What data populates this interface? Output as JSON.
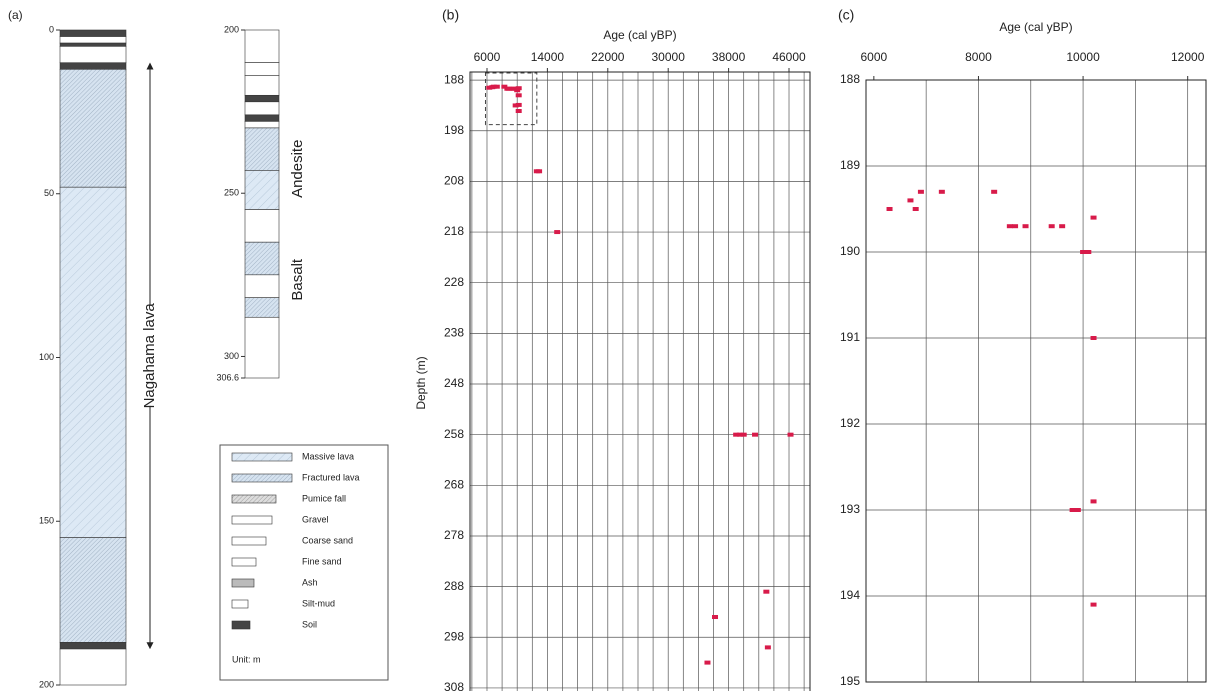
{
  "column_a": {
    "panel": "(a)",
    "columns": [
      {
        "lim": [
          0,
          200
        ],
        "ticks": [
          0,
          50,
          100,
          150,
          200
        ],
        "layers": [
          {
            "top": 0,
            "bottom": 2,
            "kind": 8
          },
          {
            "top": 2,
            "bottom": 4,
            "kind": 3
          },
          {
            "top": 4,
            "bottom": 5,
            "kind": 8
          },
          {
            "top": 5,
            "bottom": 10,
            "kind": 3
          },
          {
            "top": 10,
            "bottom": 12,
            "kind": 8
          },
          {
            "top": 12,
            "bottom": 48,
            "kind": 1
          },
          {
            "top": 48,
            "bottom": 155,
            "kind": 0
          },
          {
            "top": 155,
            "bottom": 187,
            "kind": 1
          },
          {
            "top": 187,
            "bottom": 189,
            "kind": 8
          },
          {
            "top": 189,
            "bottom": 200,
            "kind": 3
          }
        ]
      },
      {
        "lim": [
          200,
          306.6
        ],
        "ticks": [
          200,
          250,
          300,
          306.6
        ],
        "layers": [
          {
            "top": 200,
            "bottom": 210,
            "kind": 3
          },
          {
            "top": 210,
            "bottom": 214,
            "kind": 5
          },
          {
            "top": 214,
            "bottom": 220,
            "kind": 3
          },
          {
            "top": 220,
            "bottom": 222,
            "kind": 8
          },
          {
            "top": 222,
            "bottom": 226,
            "kind": 3
          },
          {
            "top": 226,
            "bottom": 228,
            "kind": 8
          },
          {
            "top": 228,
            "bottom": 230,
            "kind": 3
          },
          {
            "top": 230,
            "bottom": 243,
            "kind": 1
          },
          {
            "top": 243,
            "bottom": 255,
            "kind": 0
          },
          {
            "top": 255,
            "bottom": 265,
            "kind": 3
          },
          {
            "top": 265,
            "bottom": 275,
            "kind": 1
          },
          {
            "top": 275,
            "bottom": 282,
            "kind": 3
          },
          {
            "top": 282,
            "bottom": 288,
            "kind": 1
          },
          {
            "top": 288,
            "bottom": 306.6,
            "kind": 3
          }
        ]
      }
    ],
    "lava_unit": {
      "text": "Nagahama lava",
      "range": [
        11,
        188
      ]
    },
    "rock_labels": [
      {
        "text": "Andesite",
        "range": [
          230,
          255
        ]
      },
      {
        "text": "Basalt",
        "range": [
          265,
          288
        ]
      }
    ],
    "legend": {
      "items": [
        "Massive lava",
        "Fractured lava",
        "Pumice fall",
        "Gravel",
        "Coarse sand",
        "Fine sand",
        "Ash",
        "Silt-mud",
        "Soil"
      ],
      "unit": "Unit: m"
    }
  },
  "chart_data": [
    {
      "type": "scatter",
      "panel": "(b)",
      "x_label": "Age (cal yBP)",
      "y_label": "Depth (m)",
      "xlim": [
        3750,
        48780
      ],
      "ylim": [
        186.4,
        309.2
      ],
      "xticks": [
        6000,
        14000,
        22000,
        30000,
        38000,
        46000
      ],
      "yticks": [
        188,
        198,
        208,
        218,
        228,
        238,
        248,
        258,
        268,
        278,
        288,
        298,
        308
      ],
      "x_grid": [
        4000,
        6000,
        8000,
        10000,
        12000,
        14000,
        16000,
        18000,
        20000,
        22000,
        24000,
        26000,
        28000,
        30000,
        32000,
        34000,
        36000,
        38000,
        40000,
        42000,
        44000,
        46000,
        48000
      ],
      "grid": true,
      "x_axis_position": "top",
      "y_inverted": true,
      "highlight_box": {
        "x": [
          5800,
          12600
        ],
        "y": [
          186.6,
          196.8
        ]
      },
      "series": [
        {
          "color": "#d81b4a",
          "x": [
            6300,
            6700,
            6900,
            7300,
            8300,
            8700,
            8900,
            9400,
            9600,
            10000,
            10200,
            10200,
            10200,
            9800,
            10200,
            12600,
            12900,
            15300,
            39000,
            39500,
            40000,
            41500,
            46200,
            43000,
            36200,
            43200,
            35200
          ],
          "y": [
            189.5,
            189.4,
            189.3,
            189.3,
            189.3,
            189.7,
            189.7,
            189.7,
            189.7,
            190,
            189.6,
            191,
            192.9,
            193,
            194.1,
            206,
            206,
            218,
            258,
            258,
            258,
            258,
            258,
            289,
            294,
            300,
            303
          ]
        }
      ]
    },
    {
      "type": "scatter",
      "panel": "(c)",
      "x_label": "Age (cal yBP)",
      "xlim": [
        5850,
        12350
      ],
      "ylim": [
        188,
        195
      ],
      "xticks": [
        6000,
        8000,
        10000,
        12000
      ],
      "yticks": [
        188,
        189,
        190,
        191,
        192,
        193,
        194,
        195
      ],
      "x_grid": [
        7000,
        8000,
        9000,
        10000,
        11000,
        12000
      ],
      "grid": true,
      "x_axis_position": "top",
      "y_inverted": true,
      "series": [
        {
          "color": "#d81b4a",
          "x": [
            6300,
            6700,
            6800,
            6900,
            7300,
            8300,
            8600,
            8700,
            8900,
            9400,
            9600,
            10000,
            10100,
            10200,
            10200,
            9800,
            9900,
            10200,
            10200
          ],
          "y": [
            189.5,
            189.4,
            189.5,
            189.3,
            189.3,
            189.3,
            189.7,
            189.7,
            189.7,
            189.7,
            189.7,
            190,
            190,
            189.6,
            191,
            193,
            193,
            192.9,
            194.1
          ]
        }
      ]
    }
  ]
}
